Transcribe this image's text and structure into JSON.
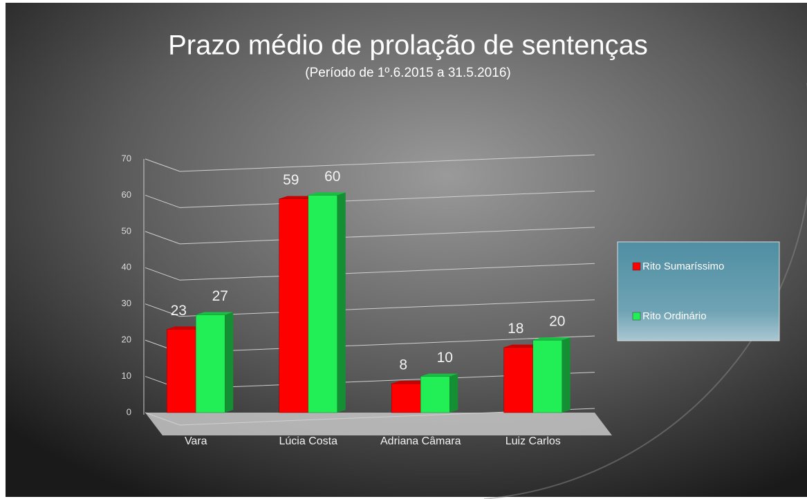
{
  "chart_data": {
    "type": "bar",
    "title": "Prazo médio de prolação de sentenças",
    "subtitle": "(Período de 1º.6.2015  a  31.5.2016)",
    "categories": [
      "Vara",
      "Lúcia Costa",
      "Adriana Câmara",
      "Luiz Carlos"
    ],
    "series": [
      {
        "name": "Rito Sumaríssimo",
        "color": "#ff0000",
        "values": [
          23,
          59,
          8,
          18
        ]
      },
      {
        "name": "Rito Ordinário",
        "color": "#22ee55",
        "values": [
          27,
          60,
          10,
          20
        ]
      }
    ],
    "ylim": [
      0,
      70
    ],
    "yticks": [
      0,
      10,
      20,
      30,
      40,
      50,
      60,
      70
    ],
    "grid": true,
    "legend": "right"
  }
}
